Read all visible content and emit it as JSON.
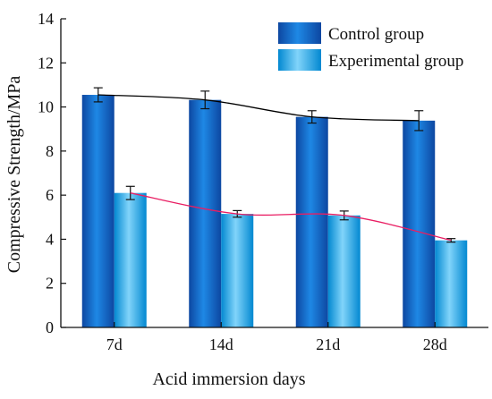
{
  "chart_data": {
    "type": "bar",
    "xlabel": "Acid immersion days",
    "ylabel": "Compressive Strength/MPa",
    "ylim": [
      0,
      14
    ],
    "yticks": [
      0,
      2,
      4,
      6,
      8,
      10,
      12,
      14
    ],
    "categories": [
      "7d",
      "14d",
      "21d",
      "28d"
    ],
    "series": [
      {
        "name": "Control group",
        "values": [
          10.55,
          10.32,
          9.55,
          9.38
        ],
        "errors": [
          0.32,
          0.4,
          0.28,
          0.45
        ],
        "color": "#1565c0",
        "trend_color": "#000000"
      },
      {
        "name": "Experimental group",
        "values": [
          6.1,
          5.15,
          5.08,
          3.95
        ],
        "errors": [
          0.3,
          0.15,
          0.2,
          0.08
        ],
        "color": "#29b6f6",
        "trend_color": "#e91e63"
      }
    ],
    "legend_position": "top-right",
    "grid": false
  }
}
